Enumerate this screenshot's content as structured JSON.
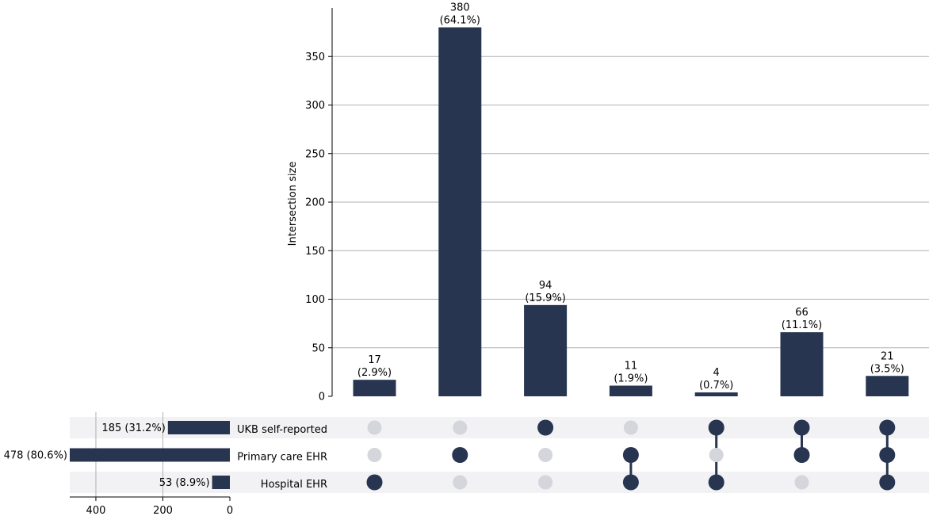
{
  "chart_data": {
    "type": "upset",
    "ylabel": "Intersection size",
    "ylim": [
      0,
      400
    ],
    "yticks": [
      0,
      50,
      100,
      150,
      200,
      250,
      300,
      350
    ],
    "sets": [
      {
        "name": "UKB self-reported",
        "size": 185,
        "label": "185 (31.2%)"
      },
      {
        "name": "Primary care EHR",
        "size": 478,
        "label": "478 (80.6%)"
      },
      {
        "name": "Hospital EHR",
        "size": 53,
        "label": "53 (8.9%)"
      }
    ],
    "set_size_axis": {
      "max": 478,
      "ticks": [
        400,
        200,
        0
      ]
    },
    "intersections": [
      {
        "members": [
          false,
          false,
          true
        ],
        "value": 17,
        "label": "17",
        "pct": "(2.9%)"
      },
      {
        "members": [
          false,
          true,
          false
        ],
        "value": 380,
        "label": "380",
        "pct": "(64.1%)"
      },
      {
        "members": [
          true,
          false,
          false
        ],
        "value": 94,
        "label": "94",
        "pct": "(15.9%)"
      },
      {
        "members": [
          false,
          true,
          true
        ],
        "value": 11,
        "label": "11",
        "pct": "(1.9%)"
      },
      {
        "members": [
          true,
          false,
          true
        ],
        "value": 4,
        "label": "4",
        "pct": "(0.7%)"
      },
      {
        "members": [
          true,
          true,
          false
        ],
        "value": 66,
        "label": "66",
        "pct": "(11.1%)"
      },
      {
        "members": [
          true,
          true,
          true
        ],
        "value": 21,
        "label": "21",
        "pct": "(3.5%)"
      }
    ],
    "colors": {
      "bar": "#273550",
      "inactive": "#d4d6dc",
      "stripe": "#f2f2f4",
      "grid": "#b0b0b0",
      "axis": "#000000"
    }
  }
}
